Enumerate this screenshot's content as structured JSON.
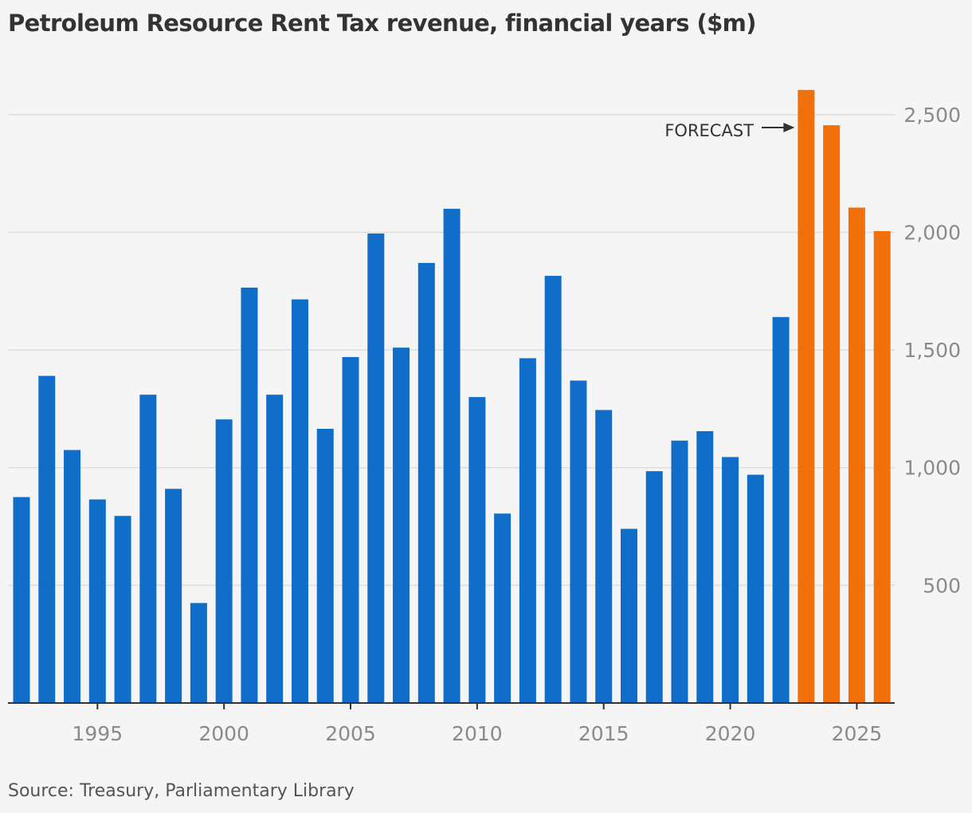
{
  "chart_data": {
    "type": "bar",
    "title": "Petroleum Resource Rent Tax revenue, financial years ($m)",
    "source": "Source: Treasury, Parliamentary Library",
    "x": [
      1992,
      1993,
      1994,
      1995,
      1996,
      1997,
      1998,
      1999,
      2000,
      2001,
      2002,
      2003,
      2004,
      2005,
      2006,
      2007,
      2008,
      2009,
      2010,
      2011,
      2012,
      2013,
      2014,
      2015,
      2016,
      2017,
      2018,
      2019,
      2020,
      2021,
      2022,
      2023,
      2024,
      2025,
      2026
    ],
    "values": [
      875,
      1390,
      1075,
      865,
      795,
      1310,
      910,
      425,
      1205,
      1765,
      1310,
      1715,
      1165,
      1470,
      1995,
      1510,
      1870,
      2100,
      1300,
      805,
      1465,
      1815,
      1370,
      1245,
      740,
      985,
      1115,
      1155,
      1045,
      970,
      1640,
      2605,
      2455,
      2105,
      2005
    ],
    "forecast_from": 2023,
    "colors": {
      "actual": "#106ec8",
      "forecast": "#f2700a",
      "grid": "#dddddd",
      "axis": "#333333"
    },
    "x_ticks": [
      1995,
      2000,
      2005,
      2010,
      2015,
      2020,
      2025
    ],
    "y_ticks": [
      500,
      1000,
      1500,
      2000,
      2500
    ],
    "ylim": [
      0,
      2750
    ],
    "y_axis_side": "right",
    "grid": true,
    "annotation": {
      "text": "FORECAST",
      "target": 2023
    }
  }
}
